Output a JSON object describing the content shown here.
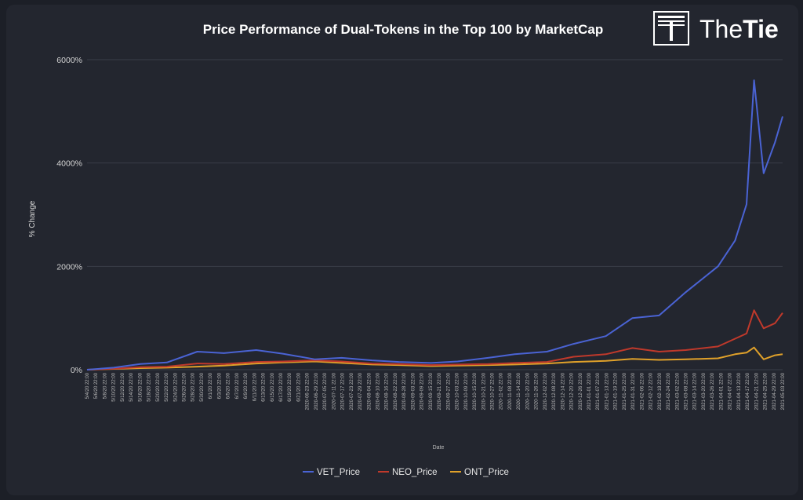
{
  "header": {
    "title": "Price Performance of Dual-Tokens in the Top 100 by MarketCap",
    "logo_text_light": "The",
    "logo_text_bold": "Tie"
  },
  "chart_data": {
    "type": "line",
    "title": "Price Performance of Dual-Tokens in the Top 100 by MarketCap",
    "xlabel": "Date",
    "ylabel": "% Change",
    "ylim": [
      0,
      6000
    ],
    "yticks": [
      0,
      2000,
      4000,
      6000
    ],
    "ytick_labels": [
      "0%",
      "2000%",
      "4000%",
      "6000%"
    ],
    "grid": true,
    "legend_position": "bottom",
    "x_tick_labels": [
      "5/4/20 22:00",
      "5/6/20 22:00",
      "5/8/20 22:00",
      "5/10/20 22:00",
      "5/12/20 22:00",
      "5/14/20 22:00",
      "5/16/20 22:00",
      "5/18/20 22:00",
      "5/20/20 22:00",
      "5/22/20 22:00",
      "5/24/20 22:00",
      "5/26/20 22:00",
      "5/28/20 22:00",
      "5/30/20 22:00",
      "6/1/20 22:00",
      "6/3/20 22:00",
      "6/5/20 22:00",
      "6/7/20 22:00",
      "6/9/20 22:00",
      "6/11/20 22:00",
      "6/13/20 22:00",
      "6/15/20 22:00",
      "6/17/20 22:00",
      "6/19/20 22:00",
      "6/21/20 22:00",
      "2020-06-23 22:00",
      "2020-06-29 22:00",
      "2020-07-05 22:00",
      "2020-07-11 22:00",
      "2020-07-17 22:00",
      "2020-07-23 22:00",
      "2020-07-29 22:00",
      "2020-08-04 22:00",
      "2020-08-10 22:00",
      "2020-08-16 22:00",
      "2020-08-22 22:00",
      "2020-08-28 22:00",
      "2020-09-03 22:00",
      "2020-09-09 22:00",
      "2020-09-15 22:00",
      "2020-09-21 22:00",
      "2020-09-27 22:00",
      "2020-10-03 22:00",
      "2020-10-09 22:00",
      "2020-10-15 22:00",
      "2020-10-21 22:00",
      "2020-10-27 22:00",
      "2020-11-02 22:00",
      "2020-11-08 22:00",
      "2020-11-14 22:00",
      "2020-11-20 22:00",
      "2020-11-26 22:00",
      "2020-12-02 22:00",
      "2020-12-08 22:00",
      "2020-12-14 22:00",
      "2020-12-20 22:00",
      "2020-12-26 22:00",
      "2021-01-01 22:00",
      "2021-01-07 22:00",
      "2021-01-13 22:00",
      "2021-01-19 22:00",
      "2021-01-25 22:00",
      "2021-01-31 22:00",
      "2021-02-06 22:00",
      "2021-02-12 22:00",
      "2021-02-18 22:00",
      "2021-02-24 22:00",
      "2021-03-02 22:00",
      "2021-03-08 22:00",
      "2021-03-14 22:00",
      "2021-03-20 22:00",
      "2021-03-26 22:00",
      "2021-04-01 22:00",
      "2021-04-07 22:00",
      "2021-04-13 22:00",
      "2021-04-17 22:00",
      "2021-04-21 22:00",
      "2021-04-25 22:00",
      "2021-04-29 22:00",
      "2021-05-03 22:00"
    ],
    "x": [
      "2020-05-04",
      "2020-05-18",
      "2020-06-01",
      "2020-06-15",
      "2020-07-01",
      "2020-07-15",
      "2020-08-01",
      "2020-08-15",
      "2020-09-01",
      "2020-09-15",
      "2020-10-01",
      "2020-10-15",
      "2020-11-01",
      "2020-11-15",
      "2020-12-01",
      "2020-12-15",
      "2021-01-01",
      "2021-01-15",
      "2021-02-01",
      "2021-02-15",
      "2021-03-01",
      "2021-03-15",
      "2021-04-01",
      "2021-04-10",
      "2021-04-16",
      "2021-04-20",
      "2021-04-25",
      "2021-05-01",
      "2021-05-05"
    ],
    "series": [
      {
        "name": "VET_Price",
        "color": "#4a63d4",
        "values": [
          0,
          40,
          110,
          140,
          350,
          320,
          380,
          310,
          200,
          230,
          180,
          150,
          130,
          160,
          230,
          300,
          350,
          500,
          650,
          1000,
          1050,
          1500,
          2000,
          2500,
          3200,
          5600,
          3800,
          4400,
          4900
        ]
      },
      {
        "name": "NEO_Price",
        "color": "#c0392b",
        "values": [
          0,
          20,
          50,
          60,
          120,
          110,
          150,
          160,
          180,
          160,
          120,
          110,
          90,
          100,
          110,
          130,
          150,
          250,
          300,
          420,
          350,
          380,
          450,
          600,
          700,
          1150,
          800,
          900,
          1100
        ]
      },
      {
        "name": "ONT_Price",
        "color": "#e0a12a",
        "values": [
          0,
          15,
          30,
          40,
          60,
          80,
          120,
          140,
          160,
          130,
          100,
          90,
          70,
          80,
          90,
          100,
          120,
          150,
          170,
          210,
          190,
          200,
          220,
          300,
          330,
          430,
          200,
          280,
          300
        ]
      }
    ]
  },
  "legend": [
    {
      "label": "VET_Price",
      "color": "#4a63d4"
    },
    {
      "label": "NEO_Price",
      "color": "#c0392b"
    },
    {
      "label": "ONT_Price",
      "color": "#e0a12a"
    }
  ]
}
